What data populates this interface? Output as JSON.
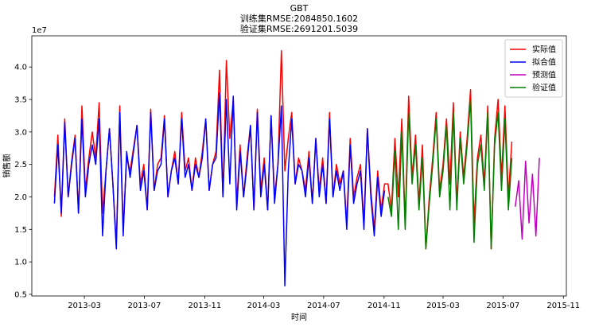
{
  "chart_data": {
    "type": "line",
    "title": [
      "GBT",
      "训练集RMSE:2084850.1602",
      "验证集RMSE:2691201.5039"
    ],
    "xlabel": "时间",
    "ylabel": "销售额",
    "y_offset_label": "1e7",
    "x": [
      "2012-12-30",
      "2013-01-06",
      "2013-01-13",
      "2013-01-20",
      "2013-01-27",
      "2013-02-03",
      "2013-02-10",
      "2013-02-17",
      "2013-02-24",
      "2013-03-03",
      "2013-03-10",
      "2013-03-17",
      "2013-03-24",
      "2013-03-31",
      "2013-04-07",
      "2013-04-14",
      "2013-04-21",
      "2013-04-28",
      "2013-05-05",
      "2013-05-12",
      "2013-05-19",
      "2013-05-26",
      "2013-06-02",
      "2013-06-09",
      "2013-06-16",
      "2013-06-23",
      "2013-06-30",
      "2013-07-07",
      "2013-07-14",
      "2013-07-21",
      "2013-07-28",
      "2013-08-04",
      "2013-08-11",
      "2013-08-18",
      "2013-08-25",
      "2013-09-01",
      "2013-09-08",
      "2013-09-15",
      "2013-09-22",
      "2013-09-29",
      "2013-10-06",
      "2013-10-13",
      "2013-10-20",
      "2013-10-27",
      "2013-11-03",
      "2013-11-10",
      "2013-11-17",
      "2013-11-24",
      "2013-12-01",
      "2013-12-08",
      "2013-12-15",
      "2013-12-22",
      "2013-12-29",
      "2014-01-05",
      "2014-01-12",
      "2014-01-19",
      "2014-01-26",
      "2014-02-02",
      "2014-02-09",
      "2014-02-16",
      "2014-02-23",
      "2014-03-02",
      "2014-03-09",
      "2014-03-16",
      "2014-03-23",
      "2014-03-30",
      "2014-04-06",
      "2014-04-13",
      "2014-04-20",
      "2014-04-27",
      "2014-05-04",
      "2014-05-11",
      "2014-05-18",
      "2014-05-25",
      "2014-06-01",
      "2014-06-08",
      "2014-06-15",
      "2014-06-22",
      "2014-06-29",
      "2014-07-06",
      "2014-07-13",
      "2014-07-20",
      "2014-07-27",
      "2014-08-03",
      "2014-08-10",
      "2014-08-17",
      "2014-08-24",
      "2014-08-31",
      "2014-09-07",
      "2014-09-14",
      "2014-09-21",
      "2014-09-28",
      "2014-10-05",
      "2014-10-12",
      "2014-10-19",
      "2014-10-26",
      "2014-11-02",
      "2014-11-09",
      "2014-11-16",
      "2014-11-23",
      "2014-11-30",
      "2014-12-07",
      "2014-12-14",
      "2014-12-21",
      "2014-12-28",
      "2015-01-04",
      "2015-01-11",
      "2015-01-18",
      "2015-01-25",
      "2015-02-01",
      "2015-02-08",
      "2015-02-15",
      "2015-02-22",
      "2015-03-01",
      "2015-03-08",
      "2015-03-15",
      "2015-03-22",
      "2015-03-29",
      "2015-04-05",
      "2015-04-12",
      "2015-04-19",
      "2015-04-26",
      "2015-05-03",
      "2015-05-10",
      "2015-05-17",
      "2015-05-24",
      "2015-05-31",
      "2015-06-07",
      "2015-06-14",
      "2015-06-21",
      "2015-06-28",
      "2015-07-05",
      "2015-07-12",
      "2015-07-19",
      "2015-07-26",
      "2015-08-02",
      "2015-08-09",
      "2015-08-16",
      "2015-08-23",
      "2015-08-30",
      "2015-09-06",
      "2015-09-13"
    ],
    "series": [
      {
        "name": "实际值",
        "color": "#ff0000",
        "values": [
          2.0,
          2.95,
          1.7,
          3.2,
          2.0,
          2.55,
          2.95,
          1.75,
          3.4,
          2.1,
          2.6,
          3.0,
          2.6,
          3.45,
          1.75,
          2.4,
          3.05,
          2.2,
          1.25,
          3.4,
          1.5,
          2.6,
          2.4,
          2.75,
          3.1,
          2.2,
          2.5,
          1.8,
          3.35,
          2.1,
          2.5,
          2.6,
          3.25,
          2.0,
          2.4,
          2.7,
          2.2,
          3.3,
          2.4,
          2.6,
          2.1,
          2.6,
          2.3,
          2.7,
          3.2,
          2.1,
          2.5,
          2.7,
          3.95,
          2.0,
          4.1,
          2.9,
          3.5,
          1.9,
          2.8,
          2.0,
          2.6,
          3.1,
          1.8,
          3.35,
          2.1,
          2.6,
          1.8,
          3.25,
          2.0,
          2.5,
          4.25,
          2.4,
          2.9,
          3.3,
          2.2,
          2.6,
          2.4,
          2.1,
          2.7,
          1.9,
          2.9,
          2.1,
          2.6,
          1.9,
          3.3,
          2.0,
          2.5,
          2.2,
          2.4,
          1.6,
          2.9,
          2.0,
          2.3,
          2.5,
          1.6,
          3.05,
          2.1,
          1.5,
          2.4,
          1.8,
          2.2,
          2.2,
          1.8,
          2.9,
          2.0,
          3.2,
          1.6,
          3.55,
          2.3,
          2.95,
          1.9,
          2.8,
          1.2,
          2.0,
          2.6,
          3.3,
          2.1,
          2.5,
          3.2,
          2.2,
          3.45,
          1.9,
          3.0,
          2.3,
          2.9,
          3.65,
          1.6,
          2.6,
          2.95,
          2.2,
          3.4,
          1.2,
          2.9,
          3.5,
          2.3,
          3.4,
          2.0,
          2.85,
          null,
          null,
          null,
          null,
          null,
          null,
          null,
          null
        ]
      },
      {
        "name": "拟合值",
        "color": "#0000ff",
        "values": [
          1.9,
          2.8,
          1.75,
          3.15,
          2.0,
          2.5,
          2.9,
          1.75,
          3.2,
          2.0,
          2.5,
          2.8,
          2.5,
          3.2,
          1.4,
          2.4,
          3.05,
          2.2,
          1.2,
          3.3,
          1.4,
          2.7,
          2.3,
          2.7,
          3.1,
          2.1,
          2.4,
          1.8,
          3.3,
          2.1,
          2.4,
          2.5,
          3.2,
          2.0,
          2.4,
          2.6,
          2.2,
          3.2,
          2.3,
          2.5,
          2.1,
          2.5,
          2.3,
          2.6,
          3.2,
          2.1,
          2.5,
          2.6,
          3.6,
          2.0,
          3.5,
          2.2,
          3.55,
          1.8,
          2.7,
          2.0,
          2.5,
          3.1,
          1.8,
          3.3,
          2.0,
          2.5,
          1.8,
          3.25,
          1.9,
          2.5,
          3.4,
          0.63,
          2.4,
          3.2,
          2.2,
          2.5,
          2.4,
          2.0,
          2.6,
          1.9,
          2.9,
          2.0,
          2.5,
          1.9,
          3.2,
          2.0,
          2.4,
          2.1,
          2.4,
          1.5,
          2.8,
          1.9,
          2.2,
          2.4,
          1.5,
          3.05,
          2.0,
          1.4,
          2.3,
          1.7,
          2.1,
          null,
          null,
          null,
          null,
          null,
          null,
          null,
          null,
          null,
          null,
          null,
          null,
          null,
          null,
          null,
          null,
          null,
          null,
          null,
          null,
          null,
          null,
          null,
          null,
          null,
          null,
          null,
          null,
          null,
          null,
          null,
          null,
          null,
          null,
          null,
          null,
          null,
          null,
          null,
          null,
          null,
          null,
          null,
          null,
          null
        ]
      },
      {
        "name": "预测值",
        "color": "#bf00bf",
        "values": [
          null,
          null,
          null,
          null,
          null,
          null,
          null,
          null,
          null,
          null,
          null,
          null,
          null,
          null,
          null,
          null,
          null,
          null,
          null,
          null,
          null,
          null,
          null,
          null,
          null,
          null,
          null,
          null,
          null,
          null,
          null,
          null,
          null,
          null,
          null,
          null,
          null,
          null,
          null,
          null,
          null,
          null,
          null,
          null,
          null,
          null,
          null,
          null,
          null,
          null,
          null,
          null,
          null,
          null,
          null,
          null,
          null,
          null,
          null,
          null,
          null,
          null,
          null,
          null,
          null,
          null,
          null,
          null,
          null,
          null,
          null,
          null,
          null,
          null,
          null,
          null,
          null,
          null,
          null,
          null,
          null,
          null,
          null,
          null,
          null,
          null,
          null,
          null,
          null,
          null,
          null,
          null,
          null,
          null,
          null,
          null,
          null,
          null,
          null,
          null,
          null,
          null,
          null,
          null,
          null,
          null,
          null,
          null,
          null,
          null,
          null,
          null,
          null,
          null,
          null,
          null,
          null,
          null,
          null,
          null,
          null,
          null,
          null,
          null,
          null,
          null,
          null,
          null,
          null,
          null,
          null,
          null,
          null,
          null,
          1.85,
          2.25,
          1.35,
          2.55,
          1.6,
          2.35,
          1.4,
          2.6
        ]
      },
      {
        "name": "验证值",
        "color": "#008000",
        "values": [
          null,
          null,
          null,
          null,
          null,
          null,
          null,
          null,
          null,
          null,
          null,
          null,
          null,
          null,
          null,
          null,
          null,
          null,
          null,
          null,
          null,
          null,
          null,
          null,
          null,
          null,
          null,
          null,
          null,
          null,
          null,
          null,
          null,
          null,
          null,
          null,
          null,
          null,
          null,
          null,
          null,
          null,
          null,
          null,
          null,
          null,
          null,
          null,
          null,
          null,
          null,
          null,
          null,
          null,
          null,
          null,
          null,
          null,
          null,
          null,
          null,
          null,
          null,
          null,
          null,
          null,
          null,
          null,
          null,
          null,
          null,
          null,
          null,
          null,
          null,
          null,
          null,
          null,
          null,
          null,
          null,
          null,
          null,
          null,
          null,
          null,
          null,
          null,
          null,
          null,
          null,
          null,
          null,
          null,
          null,
          null,
          null,
          2.0,
          1.7,
          2.7,
          1.5,
          3.0,
          1.5,
          3.3,
          2.2,
          2.8,
          1.8,
          2.6,
          1.2,
          1.9,
          2.5,
          3.2,
          2.0,
          2.4,
          3.1,
          1.8,
          3.3,
          1.8,
          2.9,
          2.2,
          2.8,
          3.5,
          1.3,
          2.5,
          2.8,
          2.1,
          3.3,
          1.2,
          2.8,
          3.3,
          2.1,
          3.2,
          1.8,
          2.6,
          null,
          null,
          null,
          null,
          null,
          null,
          null,
          null
        ]
      }
    ],
    "xlim": [
      "2012-11-14",
      "2015-11-07"
    ],
    "xticks": [
      "2013-03",
      "2013-07",
      "2013-11",
      "2014-03",
      "2014-07",
      "2014-11",
      "2015-03",
      "2015-07",
      "2015-11"
    ],
    "ylim": [
      0.475,
      4.48
    ],
    "yticks": [
      0.5,
      {
        "value": 1,
        "label": "1.0"
      },
      1.5,
      {
        "value": 2,
        "label": "2.0"
      },
      2.5,
      {
        "value": 3,
        "label": "3.0"
      },
      3.5,
      {
        "value": 4,
        "label": "4.0"
      }
    ],
    "grid": false,
    "legend": "upper right"
  }
}
